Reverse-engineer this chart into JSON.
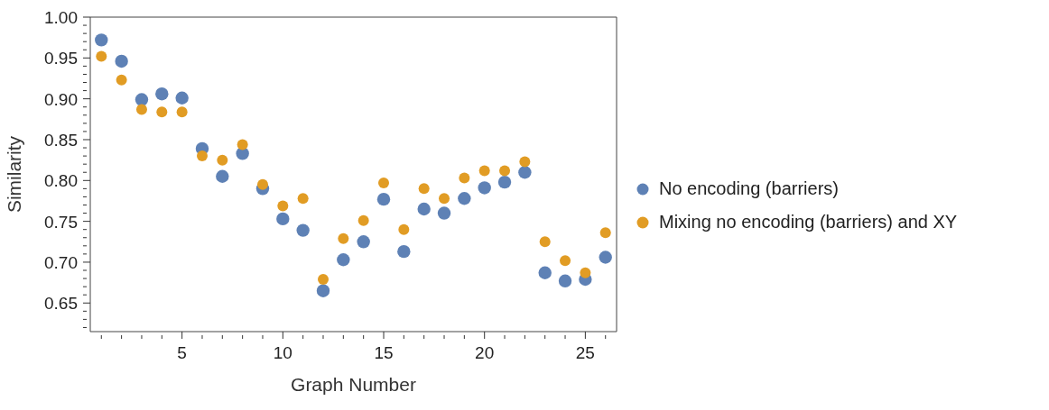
{
  "chart_data": {
    "type": "scatter",
    "xlabel": "Graph Number",
    "ylabel": "Similarity",
    "x": [
      1,
      2,
      3,
      4,
      5,
      6,
      7,
      8,
      9,
      10,
      11,
      12,
      13,
      14,
      15,
      16,
      17,
      18,
      19,
      20,
      21,
      22,
      23,
      24,
      25,
      26
    ],
    "series": [
      {
        "name": "No encoding (barriers)",
        "color": "#5e81b5",
        "values": [
          0.972,
          0.946,
          0.899,
          0.906,
          0.901,
          0.839,
          0.805,
          0.833,
          0.79,
          0.753,
          0.739,
          0.665,
          0.703,
          0.725,
          0.777,
          0.713,
          0.765,
          0.76,
          0.778,
          0.791,
          0.798,
          0.81,
          0.687,
          0.677,
          0.679,
          0.706
        ]
      },
      {
        "name": "Mixing no encoding (barriers) and XY",
        "color": "#e19c24",
        "values": [
          0.952,
          0.923,
          0.887,
          0.884,
          0.884,
          0.83,
          0.825,
          0.844,
          0.795,
          0.769,
          0.778,
          0.679,
          0.729,
          0.751,
          0.797,
          0.74,
          0.79,
          0.778,
          0.803,
          0.812,
          0.812,
          0.823,
          0.725,
          0.702,
          0.687,
          0.736
        ]
      }
    ],
    "xlim": [
      0.45,
      26.55
    ],
    "xticks": [
      {
        "value": 1,
        "label": null
      },
      {
        "value": 2,
        "label": null
      },
      {
        "value": 3,
        "label": null
      },
      {
        "value": 4,
        "label": null
      },
      5,
      {
        "value": 6,
        "label": null
      },
      {
        "value": 7,
        "label": null
      },
      {
        "value": 8,
        "label": null
      },
      {
        "value": 9,
        "label": null
      },
      10,
      {
        "value": 11,
        "label": null
      },
      {
        "value": 12,
        "label": null
      },
      {
        "value": 13,
        "label": null
      },
      {
        "value": 14,
        "label": null
      },
      15,
      {
        "value": 16,
        "label": null
      },
      {
        "value": 17,
        "label": null
      },
      {
        "value": 18,
        "label": null
      },
      {
        "value": 19,
        "label": null
      },
      20,
      {
        "value": 21,
        "label": null
      },
      {
        "value": 22,
        "label": null
      },
      {
        "value": 23,
        "label": null
      },
      {
        "value": 24,
        "label": null
      },
      25,
      {
        "value": 26,
        "label": null
      }
    ],
    "ylim": [
      0.615,
      1.0
    ],
    "yticks": [
      {
        "value": 0.62,
        "label": null
      },
      {
        "value": 0.63,
        "label": null
      },
      {
        "value": 0.64,
        "label": null
      },
      0.65,
      {
        "value": 0.66,
        "label": null
      },
      {
        "value": 0.67,
        "label": null
      },
      {
        "value": 0.68,
        "label": null
      },
      {
        "value": 0.69,
        "label": null
      },
      {
        "value": 0.7,
        "label": "0.70"
      },
      {
        "value": 0.71,
        "label": null
      },
      {
        "value": 0.72,
        "label": null
      },
      {
        "value": 0.73,
        "label": null
      },
      {
        "value": 0.74,
        "label": null
      },
      0.75,
      {
        "value": 0.76,
        "label": null
      },
      {
        "value": 0.77,
        "label": null
      },
      {
        "value": 0.78,
        "label": null
      },
      {
        "value": 0.79,
        "label": null
      },
      {
        "value": 0.8,
        "label": "0.80"
      },
      {
        "value": 0.81,
        "label": null
      },
      {
        "value": 0.82,
        "label": null
      },
      {
        "value": 0.83,
        "label": null
      },
      {
        "value": 0.84,
        "label": null
      },
      0.85,
      {
        "value": 0.86,
        "label": null
      },
      {
        "value": 0.87,
        "label": null
      },
      {
        "value": 0.88,
        "label": null
      },
      {
        "value": 0.89,
        "label": null
      },
      {
        "value": 0.9,
        "label": "0.90"
      },
      {
        "value": 0.91,
        "label": null
      },
      {
        "value": 0.92,
        "label": null
      },
      {
        "value": 0.93,
        "label": null
      },
      {
        "value": 0.94,
        "label": null
      },
      0.95,
      {
        "value": 0.96,
        "label": null
      },
      {
        "value": 0.97,
        "label": null
      },
      {
        "value": 0.98,
        "label": null
      },
      {
        "value": 0.99,
        "label": null
      },
      {
        "value": 1.0,
        "label": "1.00"
      }
    ],
    "grid": false,
    "legend": "right",
    "marker": "circle"
  }
}
